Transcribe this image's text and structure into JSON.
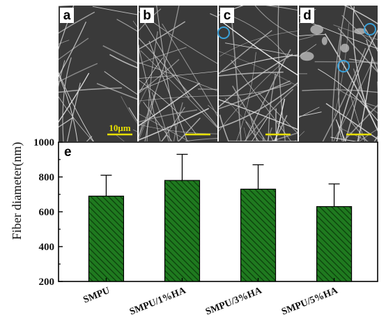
{
  "micrographs": [
    {
      "label": "a",
      "scale_bar_text": "10μm",
      "fiber_density": "low",
      "markers": 0
    },
    {
      "label": "b",
      "scale_bar_text": "",
      "fiber_density": "medium",
      "markers": 1
    },
    {
      "label": "c",
      "scale_bar_text": "",
      "fiber_density": "medium",
      "markers": 1
    },
    {
      "label": "d",
      "scale_bar_text": "",
      "fiber_density": "high",
      "markers": 2
    }
  ],
  "colors": {
    "bar_fill": "#1f7a1f",
    "bar_hatch": "#0b3d0b",
    "scale_bar": "#e8e000",
    "marker_circle": "#3aa0d8",
    "sem_background": "#3a3a3a",
    "sem_fiber": "#d8d8d8"
  },
  "chart_data": {
    "type": "bar",
    "panel_label": "e",
    "categories": [
      "SMPU",
      "SMPU/1%HA",
      "SMPU/3%HA",
      "SMPU/5%HA"
    ],
    "values": [
      690,
      780,
      730,
      630
    ],
    "error": [
      120,
      150,
      140,
      130
    ],
    "title": "",
    "xlabel": "",
    "ylabel": "Fiber diameter(nm)",
    "ylim": [
      200,
      1000
    ],
    "yticks": [
      200,
      400,
      600,
      800,
      1000
    ],
    "grid": false,
    "legend": "none"
  }
}
